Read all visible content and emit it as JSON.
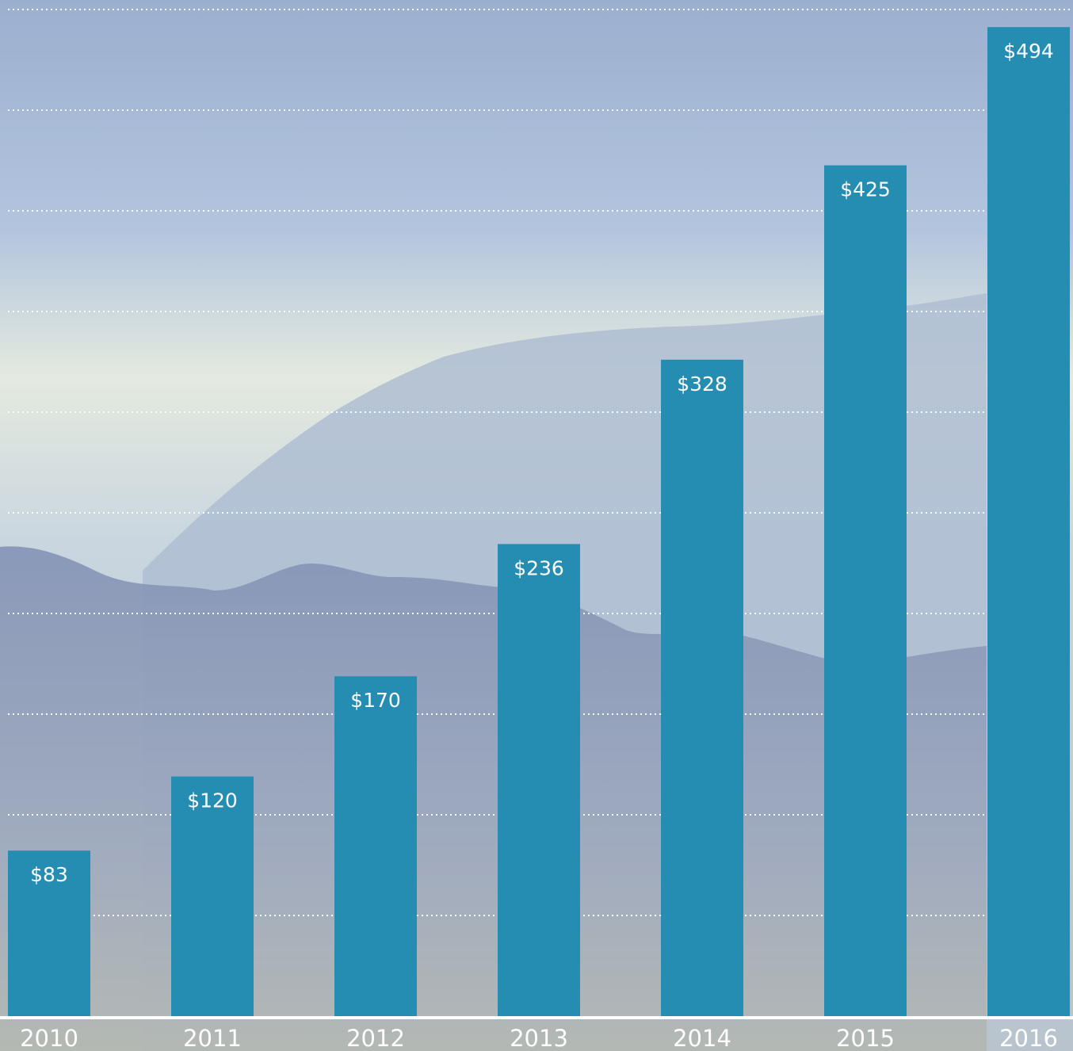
{
  "chart_data": {
    "type": "bar",
    "title": "",
    "xlabel": "",
    "ylabel": "",
    "categories": [
      "2010",
      "2011",
      "2012",
      "2013",
      "2014",
      "2015",
      "2016"
    ],
    "values": [
      83,
      120,
      170,
      236,
      328,
      425,
      494
    ],
    "value_labels": [
      "$83",
      "$120",
      "$170",
      "$236",
      "$328",
      "$425",
      "$494"
    ],
    "ylim": [
      0,
      500
    ],
    "grid": true,
    "legend": "none"
  },
  "colors": {
    "bar": "#268db2",
    "gridline": "#ffffff",
    "baseline": "#ffffff",
    "label_text": "#ffffff",
    "sky_top": "#9fb3d2",
    "sky_glow": "#eef1e2",
    "hill_far": "#a9b9d0",
    "hill_near": "#8696b8",
    "ground": "#b2b7b0"
  }
}
